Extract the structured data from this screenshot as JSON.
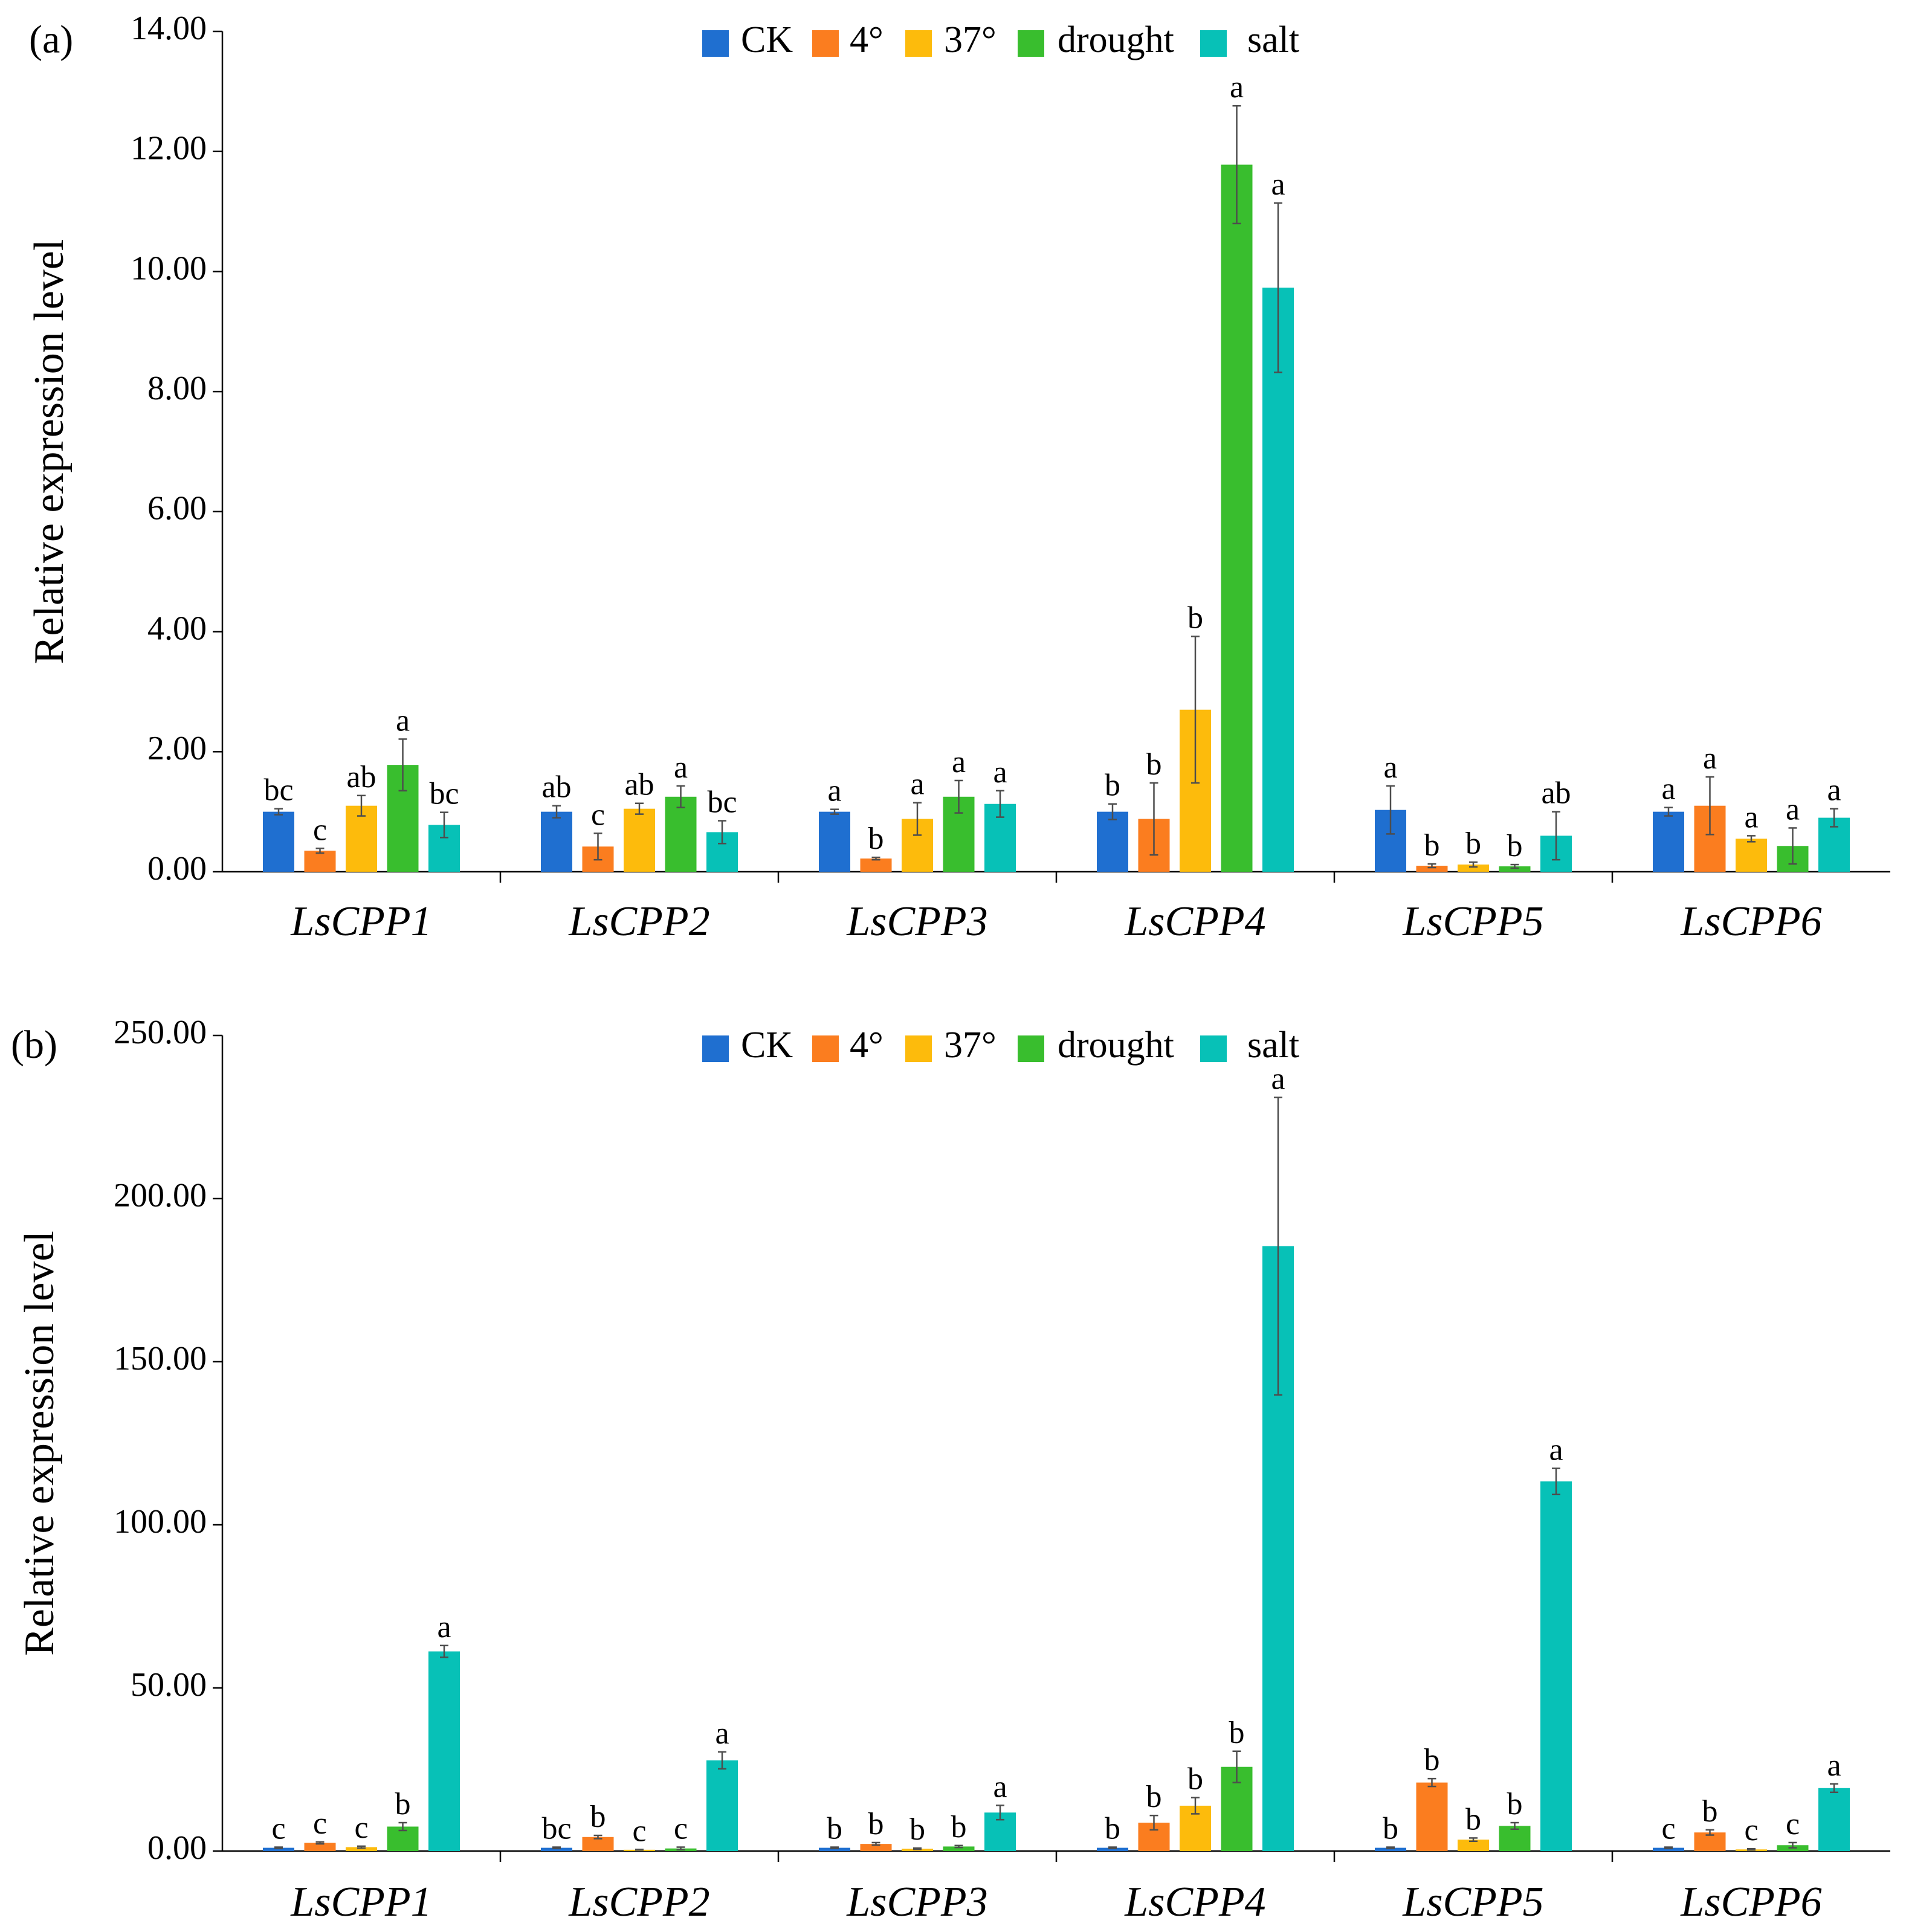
{
  "series_colors": {
    "CK": "#1f6fd0",
    "4°": "#fb7d1f",
    "37°": "#fdbb0c",
    "drought": "#39be2e",
    "salt": "#07c1b7"
  },
  "chart_data": [
    {
      "type": "bar",
      "panel_label": "(a)",
      "ylabel": "Relative expression level",
      "ylim": [
        0,
        14
      ],
      "yticks": [
        "0.00",
        "2.00",
        "4.00",
        "6.00",
        "8.00",
        "10.00",
        "12.00",
        "14.00"
      ],
      "categories": [
        "LsCPP1",
        "LsCPP2",
        "LsCPP3",
        "LsCPP4",
        "LsCPP5",
        "LsCPP6"
      ],
      "legend": [
        "CK",
        "4°",
        "37°",
        "drought",
        "salt"
      ],
      "legend_position": "top-center",
      "series": [
        {
          "name": "CK",
          "values": [
            1.0,
            1.0,
            1.0,
            1.0,
            1.03,
            1.0
          ],
          "errors": [
            0.05,
            0.1,
            0.04,
            0.13,
            0.4,
            0.07
          ],
          "labels": [
            "bc",
            "ab",
            "a",
            "b",
            "a",
            "a"
          ]
        },
        {
          "name": "4°",
          "values": [
            0.35,
            0.42,
            0.22,
            0.88,
            0.1,
            1.1
          ],
          "errors": [
            0.04,
            0.22,
            0.02,
            0.6,
            0.03,
            0.48
          ],
          "labels": [
            "c",
            "c",
            "b",
            "b",
            "b",
            "a"
          ]
        },
        {
          "name": "37°",
          "values": [
            1.1,
            1.05,
            0.88,
            2.7,
            0.12,
            0.55
          ],
          "errors": [
            0.17,
            0.09,
            0.27,
            1.22,
            0.04,
            0.05
          ],
          "labels": [
            "ab",
            "ab",
            "a",
            "b",
            "b",
            "a"
          ]
        },
        {
          "name": "drought",
          "values": [
            1.78,
            1.25,
            1.25,
            11.78,
            0.09,
            0.43
          ],
          "errors": [
            0.43,
            0.18,
            0.27,
            0.98,
            0.03,
            0.3
          ],
          "labels": [
            "a",
            "a",
            "a",
            "a",
            "b",
            "a"
          ]
        },
        {
          "name": "salt",
          "values": [
            0.78,
            0.66,
            1.13,
            9.73,
            0.6,
            0.9
          ],
          "errors": [
            0.21,
            0.19,
            0.22,
            1.41,
            0.4,
            0.15
          ],
          "labels": [
            "bc",
            "bc",
            "a",
            "a",
            "ab",
            "a"
          ]
        }
      ]
    },
    {
      "type": "bar",
      "panel_label": "(b)",
      "ylabel": "Relative expression level",
      "ylim": [
        0,
        250
      ],
      "yticks": [
        "0.00",
        "50.00",
        "100.00",
        "150.00",
        "200.00",
        "250.00"
      ],
      "categories": [
        "LsCPP1",
        "LsCPP2",
        "LsCPP3",
        "LsCPP4",
        "LsCPP5",
        "LsCPP6"
      ],
      "legend": [
        "CK",
        "4°",
        "37°",
        "drought",
        "salt"
      ],
      "legend_position": "top-center",
      "series": [
        {
          "name": "CK",
          "values": [
            1.0,
            1.0,
            1.0,
            1.0,
            1.0,
            1.0
          ],
          "errors": [
            0.2,
            0.2,
            0.2,
            0.2,
            0.2,
            0.2
          ],
          "labels": [
            "c",
            "bc",
            "b",
            "b",
            "b",
            "c"
          ]
        },
        {
          "name": "4°",
          "values": [
            2.5,
            4.3,
            2.2,
            8.7,
            21.0,
            5.7
          ],
          "errors": [
            0.3,
            0.5,
            0.4,
            2.2,
            1.2,
            0.8
          ],
          "labels": [
            "c",
            "b",
            "b",
            "b",
            "b",
            "b"
          ]
        },
        {
          "name": "37°",
          "values": [
            1.2,
            0.4,
            0.7,
            13.9,
            3.5,
            0.5
          ],
          "errors": [
            0.3,
            0.1,
            0.2,
            2.5,
            0.5,
            0.2
          ],
          "labels": [
            "c",
            "c",
            "b",
            "b",
            "b",
            "c"
          ]
        },
        {
          "name": "drought",
          "values": [
            7.5,
            0.8,
            1.4,
            25.8,
            7.7,
            1.8
          ],
          "errors": [
            1.2,
            0.4,
            0.3,
            4.8,
            1.0,
            0.8
          ],
          "labels": [
            "b",
            "c",
            "b",
            "b",
            "b",
            "c"
          ]
        },
        {
          "name": "salt",
          "values": [
            61.2,
            27.8,
            11.8,
            185.4,
            113.3,
            19.3
          ],
          "errors": [
            1.8,
            2.6,
            2.2,
            45.6,
            4.0,
            1.3
          ],
          "labels": [
            "a",
            "a",
            "a",
            "a",
            "a",
            "a"
          ]
        }
      ]
    }
  ]
}
